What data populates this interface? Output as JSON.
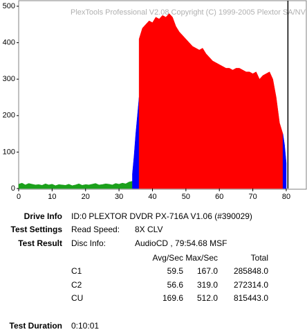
{
  "chart_data": {
    "type": "area",
    "watermark": "PlexTools Professional V2.08 Copyright (C) 1999-2005 Plextor SA/NV",
    "xlim": [
      0,
      86
    ],
    "ylim": [
      0,
      500
    ],
    "xticks": [
      0,
      10,
      20,
      30,
      40,
      50,
      60,
      70,
      80
    ],
    "yticks": [
      0,
      100,
      200,
      300,
      400,
      500
    ],
    "end_marker": 80.5,
    "series": [
      {
        "color": "#1ba01b",
        "x": [
          0,
          1,
          2,
          3,
          4,
          5,
          6,
          7,
          8,
          9,
          10,
          11,
          12,
          13,
          14,
          15,
          16,
          17,
          18,
          19,
          20,
          21,
          22,
          23,
          24,
          25,
          26,
          27,
          28,
          29,
          30,
          31,
          32,
          33,
          34
        ],
        "values": [
          12,
          15,
          10,
          14,
          12,
          10,
          11,
          9,
          13,
          10,
          12,
          8,
          11,
          10,
          9,
          12,
          8,
          10,
          13,
          9,
          11,
          10,
          12,
          14,
          10,
          11,
          13,
          12,
          10,
          14,
          12,
          15,
          13,
          18,
          20
        ]
      },
      {
        "color": "#0000ff",
        "x": [
          34,
          34.5,
          35,
          35.5,
          36
        ],
        "values": [
          40,
          90,
          150,
          200,
          250
        ]
      },
      {
        "color": "#ff0000",
        "x": [
          36,
          37,
          38,
          39,
          40,
          41,
          42,
          43,
          44,
          45,
          46,
          47,
          48,
          49,
          50,
          51,
          52,
          53,
          54,
          55,
          56,
          57,
          58,
          59,
          60,
          61,
          62,
          63,
          64,
          65,
          66,
          67,
          68,
          69,
          70,
          71,
          72,
          73,
          74,
          75,
          76,
          77,
          78,
          79
        ],
        "values": [
          410,
          440,
          450,
          460,
          455,
          470,
          465,
          475,
          470,
          480,
          470,
          445,
          430,
          420,
          410,
          400,
          390,
          385,
          380,
          385,
          370,
          360,
          350,
          345,
          340,
          335,
          330,
          330,
          325,
          330,
          330,
          325,
          320,
          320,
          315,
          320,
          300,
          310,
          315,
          320,
          300,
          250,
          180,
          150
        ]
      },
      {
        "color": "#0000ff",
        "x": [
          79,
          79.5,
          80
        ],
        "values": [
          150,
          120,
          70
        ]
      }
    ]
  },
  "info": {
    "drive_label": "Drive Info",
    "drive_value": "ID:0 PLEXTOR DVDR PX-716A V1.06 (#390029)",
    "settings_label": "Test Settings",
    "speed_label": "Read Speed:",
    "speed_value": "8X CLV",
    "result_label": "Test Result",
    "disc_label": "Disc Info:",
    "disc_value": "AudioCD , 79:54.68 MSF",
    "headers": [
      "Avg/Sec",
      "Max/Sec",
      "Total"
    ],
    "rows": [
      [
        "C1",
        "59.5",
        "167.0",
        "285848.0"
      ],
      [
        "C2",
        "56.6",
        "319.0",
        "272314.0"
      ],
      [
        "CU",
        "169.6",
        "512.0",
        "815443.0"
      ]
    ],
    "duration_label": "Test Duration",
    "duration_value": "0:10:01"
  }
}
